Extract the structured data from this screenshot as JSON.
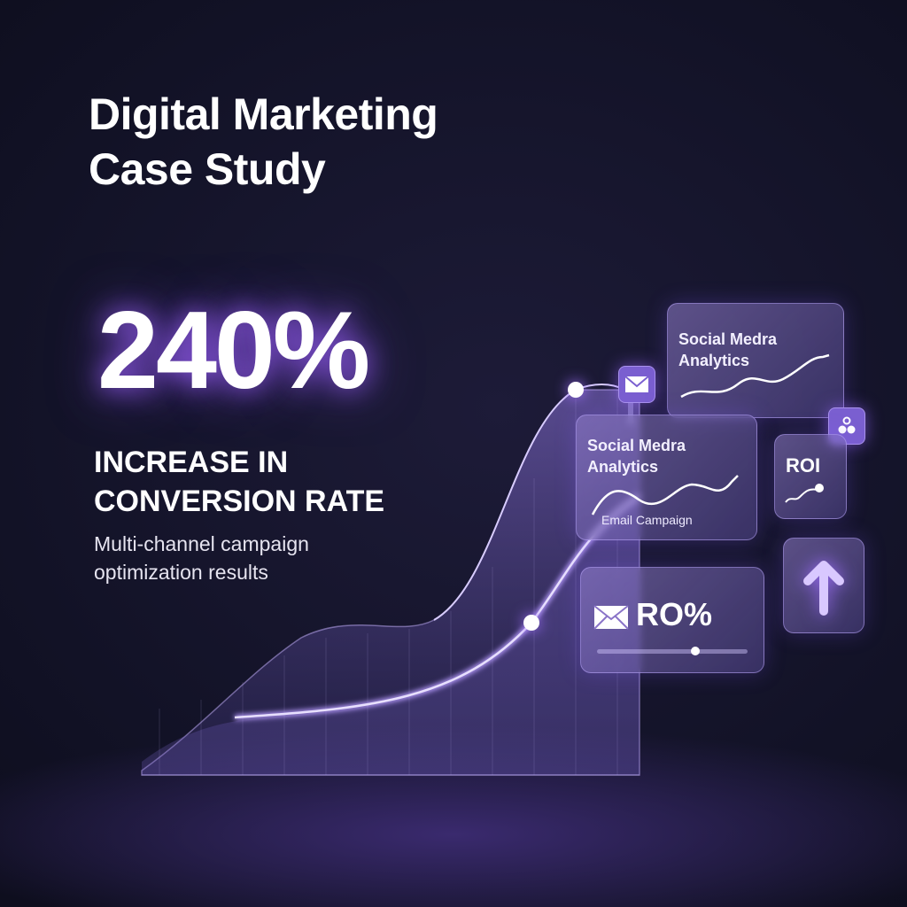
{
  "title": {
    "line1": "Digital Marketing",
    "line2": "Case Study"
  },
  "headline_stat": "240%",
  "subtitle": {
    "line1": "INCREASE IN",
    "line2": "CONVERSION RATE"
  },
  "description": {
    "line1": "Multi-channel campaign",
    "line2": "optimization results"
  },
  "cards": {
    "back_analytics": {
      "line1": "Social Medra",
      "line2": "Analytics"
    },
    "front_analytics": {
      "line1": "Social Medra",
      "line2": "Analytics",
      "caption": "Email Campaign"
    },
    "roi": {
      "label": "ROI"
    },
    "email_stat": {
      "value": "RO%",
      "slider_level": 0.65
    }
  },
  "icons": [
    "envelope-icon",
    "people-icon",
    "arrow-up-icon",
    "envelope-icon"
  ],
  "colors": {
    "accent": "#8b5cf6",
    "background": "#131328",
    "card": "#7b68c0"
  }
}
